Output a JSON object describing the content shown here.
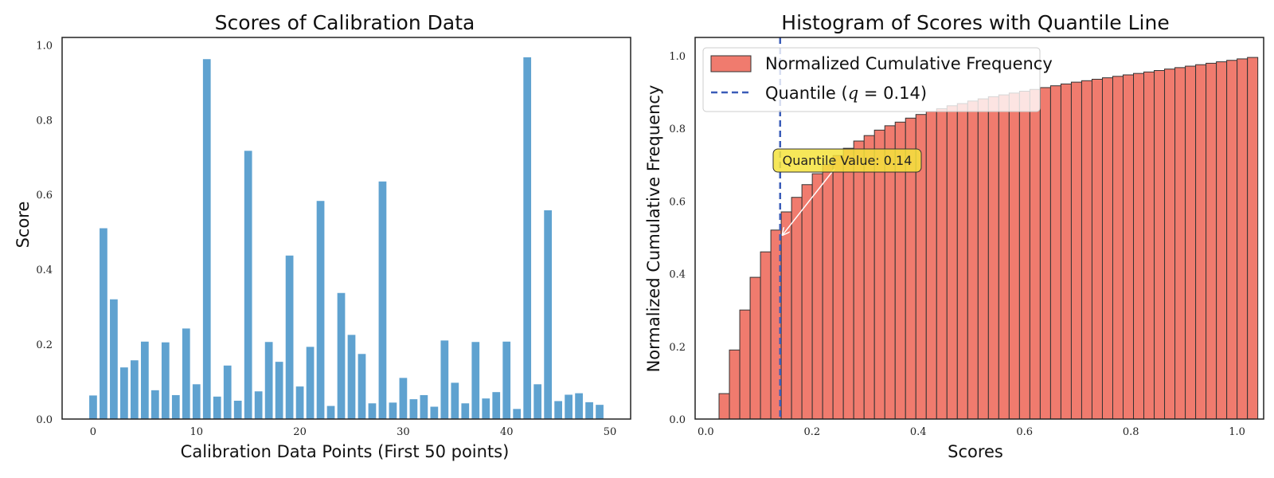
{
  "chart_data": [
    {
      "type": "bar",
      "title": "Scores of Calibration Data",
      "xlabel": "Calibration Data Points (First 50 points)",
      "ylabel": "Score",
      "xlim": [
        -3,
        52
      ],
      "ylim": [
        0,
        1.02
      ],
      "xticks": [
        0,
        10,
        20,
        30,
        40,
        50
      ],
      "yticks": [
        0.0,
        0.2,
        0.4,
        0.6,
        0.8,
        1.0
      ],
      "grid": false,
      "color": "#5fa2d0",
      "x": [
        0,
        1,
        2,
        3,
        4,
        5,
        6,
        7,
        8,
        9,
        10,
        11,
        12,
        13,
        14,
        15,
        16,
        17,
        18,
        19,
        20,
        21,
        22,
        23,
        24,
        25,
        26,
        27,
        28,
        29,
        30,
        31,
        32,
        33,
        34,
        35,
        36,
        37,
        38,
        39,
        40,
        41,
        42,
        43,
        44,
        45,
        46,
        47,
        48,
        49
      ],
      "values": [
        0.063,
        0.51,
        0.32,
        0.138,
        0.157,
        0.207,
        0.077,
        0.205,
        0.064,
        0.242,
        0.093,
        0.962,
        0.06,
        0.143,
        0.049,
        0.717,
        0.074,
        0.206,
        0.153,
        0.437,
        0.087,
        0.193,
        0.583,
        0.035,
        0.337,
        0.225,
        0.174,
        0.042,
        0.635,
        0.044,
        0.11,
        0.053,
        0.064,
        0.033,
        0.21,
        0.097,
        0.042,
        0.206,
        0.055,
        0.072,
        0.207,
        0.027,
        0.967,
        0.093,
        0.558,
        0.048,
        0.065,
        0.069,
        0.045,
        0.038
      ]
    },
    {
      "type": "bar",
      "title": "Histogram of Scores with Quantile Line",
      "xlabel": "Scores",
      "ylabel": "Normalized Cumulative Frequency",
      "xlim": [
        -0.02,
        1.05
      ],
      "ylim": [
        0,
        1.05
      ],
      "xticks": [
        0.0,
        0.2,
        0.4,
        0.6,
        0.8,
        1.0
      ],
      "yticks": [
        0.0,
        0.2,
        0.4,
        0.6,
        0.8,
        1.0
      ],
      "grid": false,
      "legend_location": "top-left",
      "series": [
        {
          "name": "Normalized Cumulative Frequency",
          "color": "#f07b6e",
          "edgecolor": "#333333",
          "bin_start": 0.025,
          "bin_width": 0.0195,
          "values": [
            0.07,
            0.19,
            0.3,
            0.39,
            0.46,
            0.52,
            0.57,
            0.61,
            0.645,
            0.675,
            0.7,
            0.725,
            0.745,
            0.765,
            0.78,
            0.795,
            0.807,
            0.817,
            0.828,
            0.838,
            0.846,
            0.854,
            0.862,
            0.868,
            0.875,
            0.881,
            0.887,
            0.892,
            0.897,
            0.902,
            0.907,
            0.912,
            0.917,
            0.922,
            0.927,
            0.931,
            0.935,
            0.939,
            0.943,
            0.947,
            0.951,
            0.955,
            0.959,
            0.963,
            0.967,
            0.971,
            0.975,
            0.979,
            0.983,
            0.987,
            0.991,
            0.995
          ]
        },
        {
          "name": "Quantile (q = 0.14)",
          "color": "#3a5cb8",
          "style": "dashed",
          "x": 0.14
        }
      ],
      "legend": {
        "hist_label": "Normalized Cumulative Frequency",
        "quantile_label_prefix": "Quantile (",
        "quantile_label_var": "q",
        "quantile_label_suffix": " = 0.14)"
      },
      "annotation": {
        "text": "Quantile Value: 0.14",
        "point_x": 0.14,
        "point_y": 0.5,
        "box_color": "#f5e33c"
      }
    }
  ]
}
